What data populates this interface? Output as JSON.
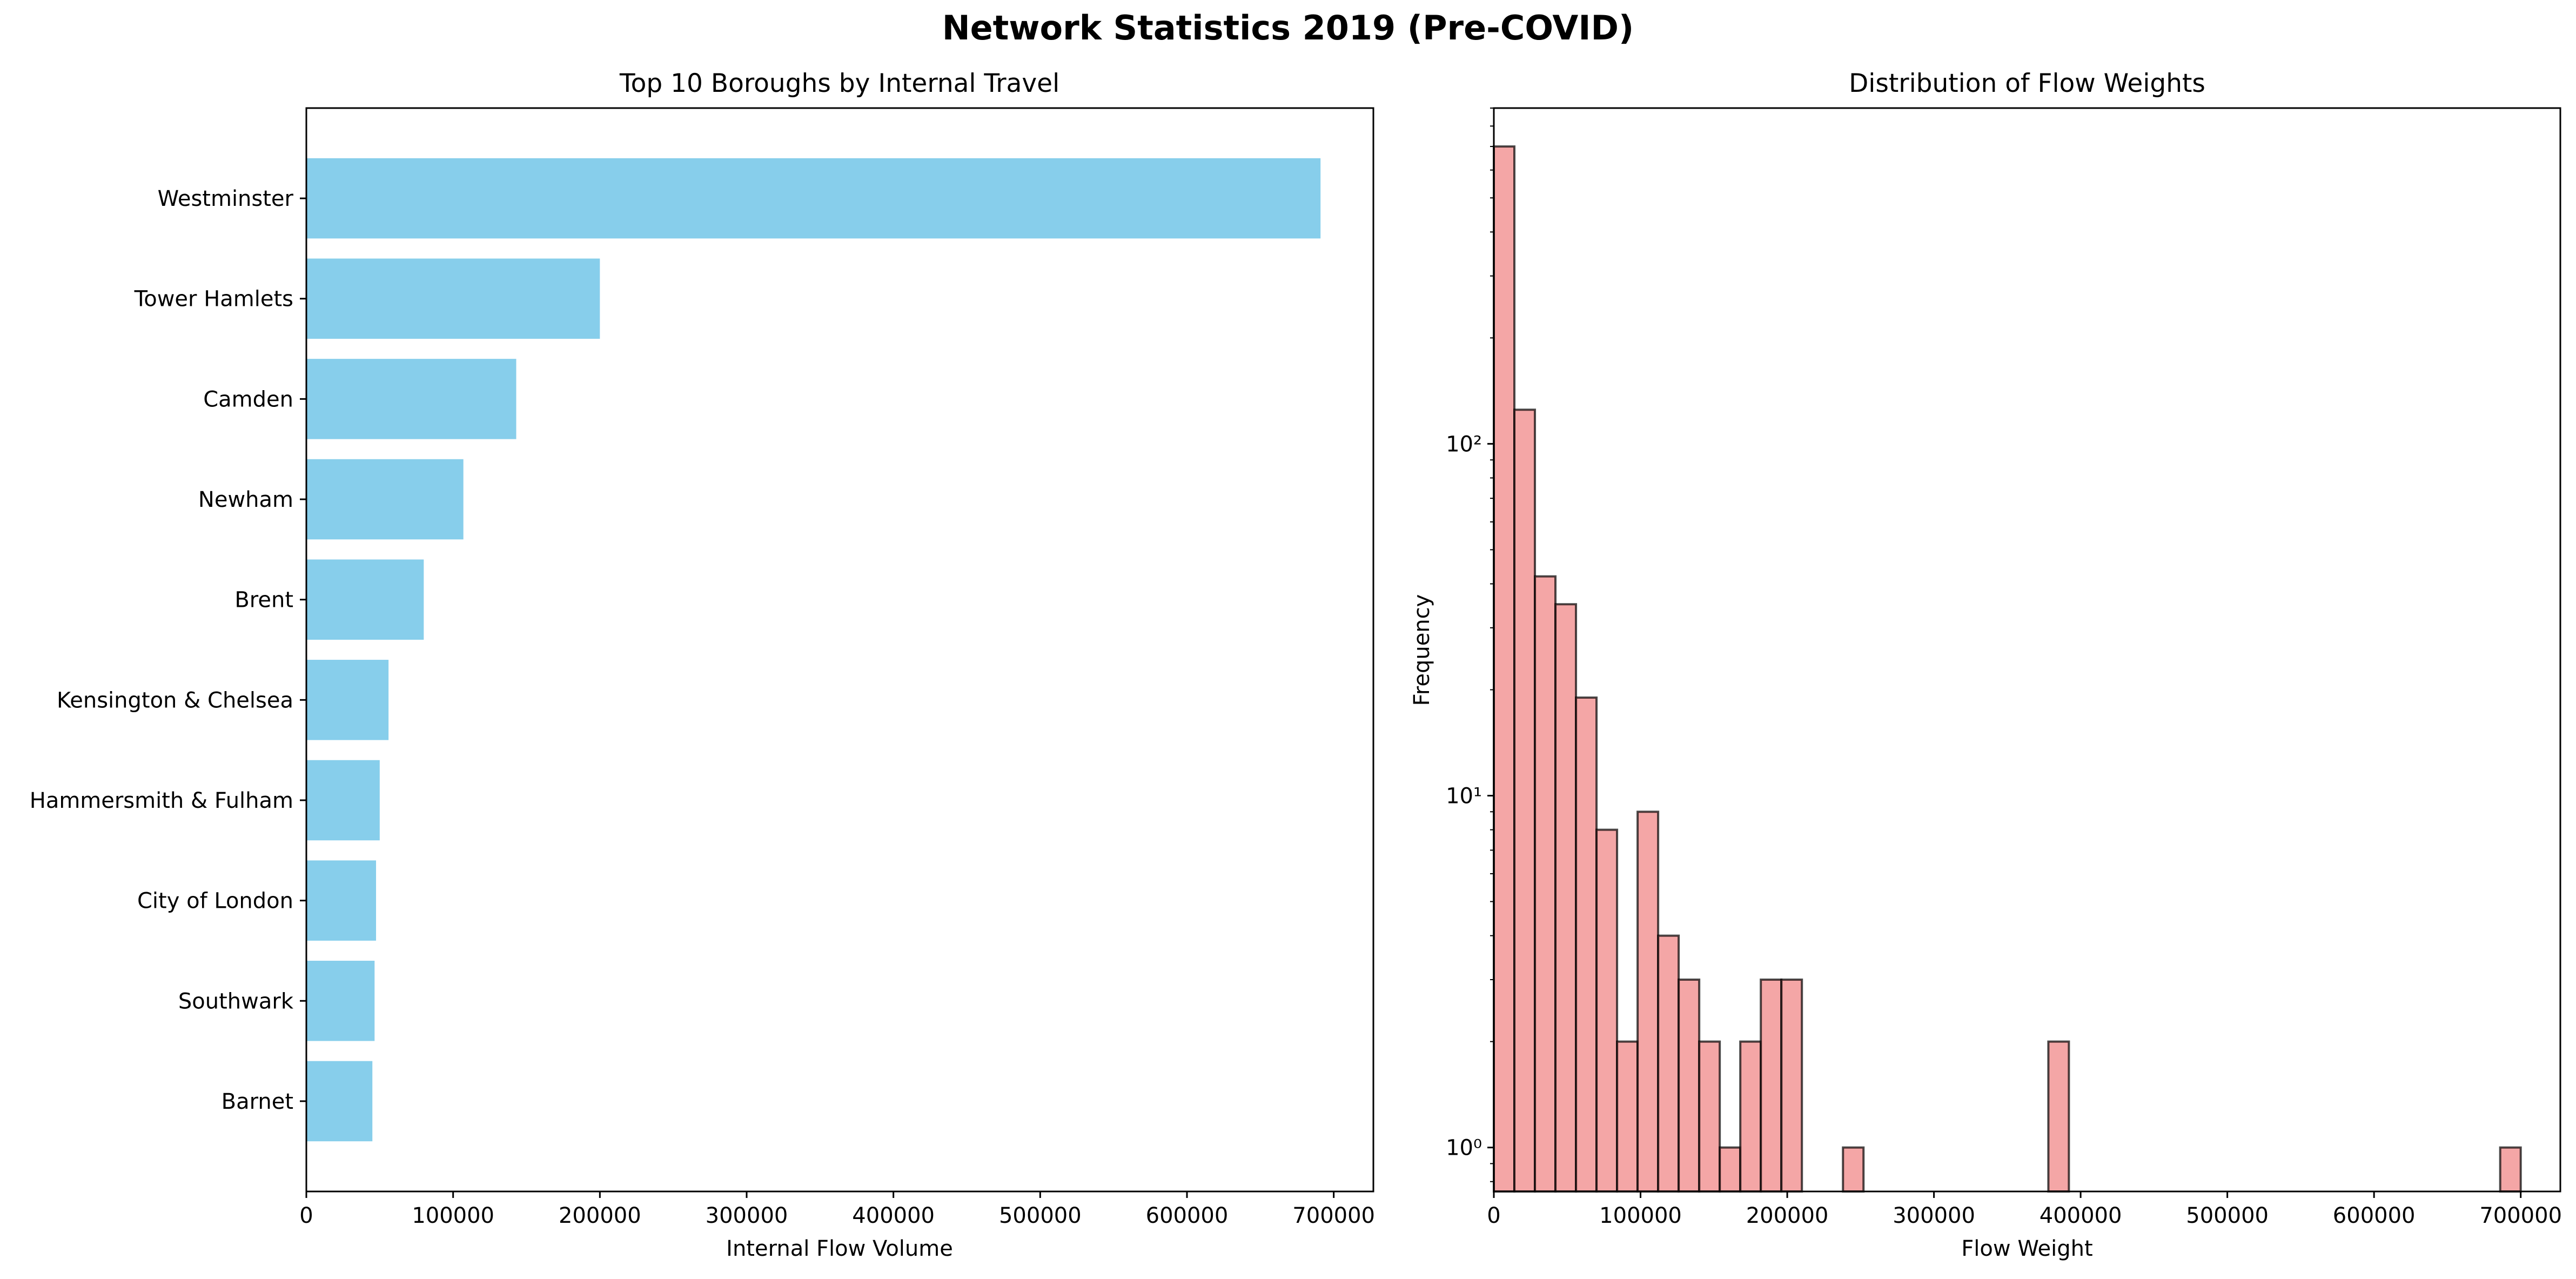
{
  "figure": {
    "suptitle": "Network Statistics 2019 (Pre-COVID)"
  },
  "chart_data": [
    {
      "type": "bar",
      "orientation": "horizontal",
      "title": "Top 10 Boroughs by Internal Travel",
      "xlabel": "Internal Flow Volume",
      "ylabel": "",
      "categories": [
        "Westminster",
        "Tower Hamlets",
        "Camden",
        "Newham",
        "Brent",
        "Kensington & Chelsea",
        "Hammersmith & Fulham",
        "City of London",
        "Southwark",
        "Barnet"
      ],
      "values": [
        691000,
        200000,
        143000,
        107000,
        80000,
        56000,
        50000,
        47500,
        46500,
        45000
      ],
      "xlim": [
        0,
        727000
      ],
      "xticks": [
        0,
        100000,
        200000,
        300000,
        400000,
        500000,
        600000,
        700000
      ],
      "xtick_labels": [
        "0",
        "100000",
        "200000",
        "300000",
        "400000",
        "500000",
        "600000",
        "700000"
      ],
      "grid": false,
      "colors": {
        "bar": "#87ceeb"
      }
    },
    {
      "type": "bar",
      "subtype": "histogram",
      "title": "Distribution of Flow Weights",
      "xlabel": "Flow Weight",
      "ylabel": "Frequency",
      "yscale": "log",
      "xlim": [
        0,
        727000
      ],
      "ylim": [
        0.75,
        900
      ],
      "xticks": [
        0,
        100000,
        200000,
        300000,
        400000,
        500000,
        600000,
        700000
      ],
      "xtick_labels": [
        "0",
        "100000",
        "200000",
        "300000",
        "400000",
        "500000",
        "600000",
        "700000"
      ],
      "yticks": [
        1,
        10,
        100
      ],
      "ytick_labels": [
        "10⁰",
        "10¹",
        "10²"
      ],
      "bins": [
        {
          "x0": 0,
          "x1": 14000,
          "count": 700
        },
        {
          "x0": 14000,
          "x1": 28000,
          "count": 125
        },
        {
          "x0": 28000,
          "x1": 42000,
          "count": 42
        },
        {
          "x0": 42000,
          "x1": 56000,
          "count": 35
        },
        {
          "x0": 56000,
          "x1": 70000,
          "count": 19
        },
        {
          "x0": 70000,
          "x1": 84000,
          "count": 8
        },
        {
          "x0": 84000,
          "x1": 98000,
          "count": 2
        },
        {
          "x0": 98000,
          "x1": 112000,
          "count": 9
        },
        {
          "x0": 112000,
          "x1": 126000,
          "count": 4
        },
        {
          "x0": 126000,
          "x1": 140000,
          "count": 3
        },
        {
          "x0": 140000,
          "x1": 154000,
          "count": 2
        },
        {
          "x0": 154000,
          "x1": 168000,
          "count": 1
        },
        {
          "x0": 168000,
          "x1": 182000,
          "count": 2
        },
        {
          "x0": 182000,
          "x1": 196000,
          "count": 3
        },
        {
          "x0": 196000,
          "x1": 210000,
          "count": 3
        },
        {
          "x0": 238000,
          "x1": 252000,
          "count": 1
        },
        {
          "x0": 378000,
          "x1": 392000,
          "count": 2
        },
        {
          "x0": 686000,
          "x1": 700000,
          "count": 1
        }
      ],
      "grid": false,
      "colors": {
        "bar": "#f08080",
        "edge": "#000000"
      }
    }
  ]
}
